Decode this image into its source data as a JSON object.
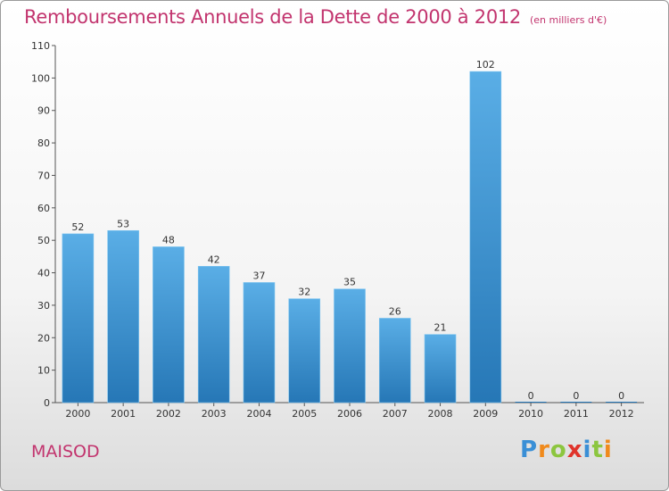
{
  "header": {
    "title": "Remboursements Annuels de la Dette de 2000 à 2012",
    "unit": "(en milliers d'€)"
  },
  "footer": {
    "commune": "MAISOD",
    "brand_letters": [
      "P",
      "r",
      "o",
      "x",
      "i",
      "t",
      "i"
    ],
    "brand_colors": [
      "#3a8fd6",
      "#f08a1c",
      "#8cc63f",
      "#e0342b",
      "#3a8fd6",
      "#8cc63f",
      "#f08a1c"
    ]
  },
  "chart_data": {
    "type": "bar",
    "title": "Remboursements Annuels de la Dette de 2000 à 2012",
    "categories": [
      "2000",
      "2001",
      "2002",
      "2003",
      "2004",
      "2005",
      "2006",
      "2007",
      "2008",
      "2009",
      "2010",
      "2011",
      "2012"
    ],
    "values": [
      52,
      53,
      48,
      42,
      37,
      32,
      35,
      26,
      21,
      102,
      0,
      0,
      0
    ],
    "ylim": [
      0,
      110
    ],
    "yticks": [
      0,
      10,
      20,
      30,
      40,
      50,
      60,
      70,
      80,
      90,
      100,
      110
    ],
    "grid": false,
    "legend": "none",
    "bar_color_light": "#5aaee6",
    "bar_color_dark": "#2677b6"
  }
}
